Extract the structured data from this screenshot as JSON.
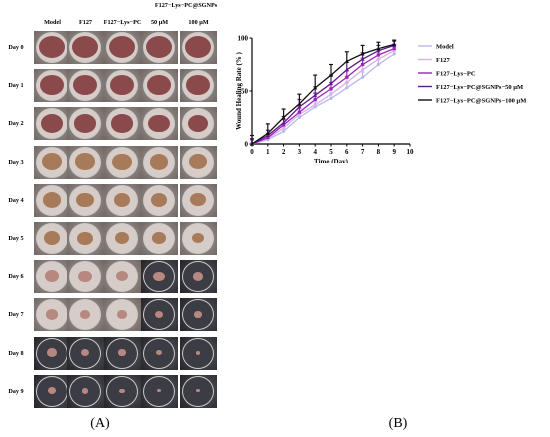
{
  "panelA": {
    "group_header": "F127−Lys−PC@SGNPs",
    "columns": [
      "Model",
      "F127",
      "F127−Lys−PC",
      "50 μM",
      "100 μM"
    ],
    "days": [
      "Day 0",
      "Day 1",
      "Day 2",
      "Day 3",
      "Day 4",
      "Day 5",
      "Day 6",
      "Day 7",
      "Day 8",
      "Day 9"
    ],
    "label": "(A)"
  },
  "panelB": {
    "label": "(B)"
  },
  "chart_data": {
    "type": "line",
    "title": "",
    "xlabel": "Time (Day)",
    "ylabel": "Wound Healing Rate (% )",
    "xlim": [
      0,
      10
    ],
    "ylim": [
      0,
      100
    ],
    "xticks": [
      0,
      1,
      2,
      3,
      4,
      5,
      6,
      7,
      8,
      9,
      10
    ],
    "yticks": [
      0,
      50,
      100
    ],
    "legend_position": "right",
    "x": [
      0,
      1,
      2,
      3,
      4,
      5,
      6,
      7,
      8,
      9
    ],
    "series": [
      {
        "name": "Model",
        "color": "#b9b9e8",
        "marker": "circle",
        "values": [
          0,
          4,
          12,
          25,
          35,
          43,
          53,
          63,
          75,
          85
        ],
        "errors": [
          4,
          3,
          4,
          5,
          5,
          5,
          5,
          5,
          5,
          4
        ]
      },
      {
        "name": "F127",
        "color": "#d4b3e6",
        "marker": "circle",
        "values": [
          0,
          5,
          15,
          28,
          37,
          47,
          58,
          70,
          80,
          88
        ],
        "errors": [
          4,
          3,
          4,
          5,
          5,
          5,
          5,
          5,
          5,
          4
        ]
      },
      {
        "name": "F127−Lys−PC",
        "color": "#a020c0",
        "marker": "square",
        "values": [
          0,
          6,
          18,
          30,
          42,
          52,
          63,
          75,
          84,
          90
        ],
        "errors": [
          4,
          4,
          5,
          6,
          6,
          6,
          6,
          6,
          5,
          4
        ]
      },
      {
        "name": "F127−Lys−PC@SGNPs−50 μM",
        "color": "#5a1a8a",
        "marker": "triangle",
        "values": [
          0,
          8,
          20,
          35,
          46,
          57,
          70,
          80,
          88,
          93
        ],
        "errors": [
          5,
          5,
          6,
          7,
          8,
          8,
          7,
          6,
          5,
          4
        ]
      },
      {
        "name": "F127−Lys−PC@SGNPs−100 μM",
        "color": "#111111",
        "marker": "triangle",
        "values": [
          0,
          10,
          25,
          38,
          53,
          65,
          78,
          85,
          90,
          94
        ],
        "errors": [
          8,
          9,
          8,
          9,
          12,
          10,
          9,
          8,
          6,
          4
        ]
      }
    ]
  }
}
